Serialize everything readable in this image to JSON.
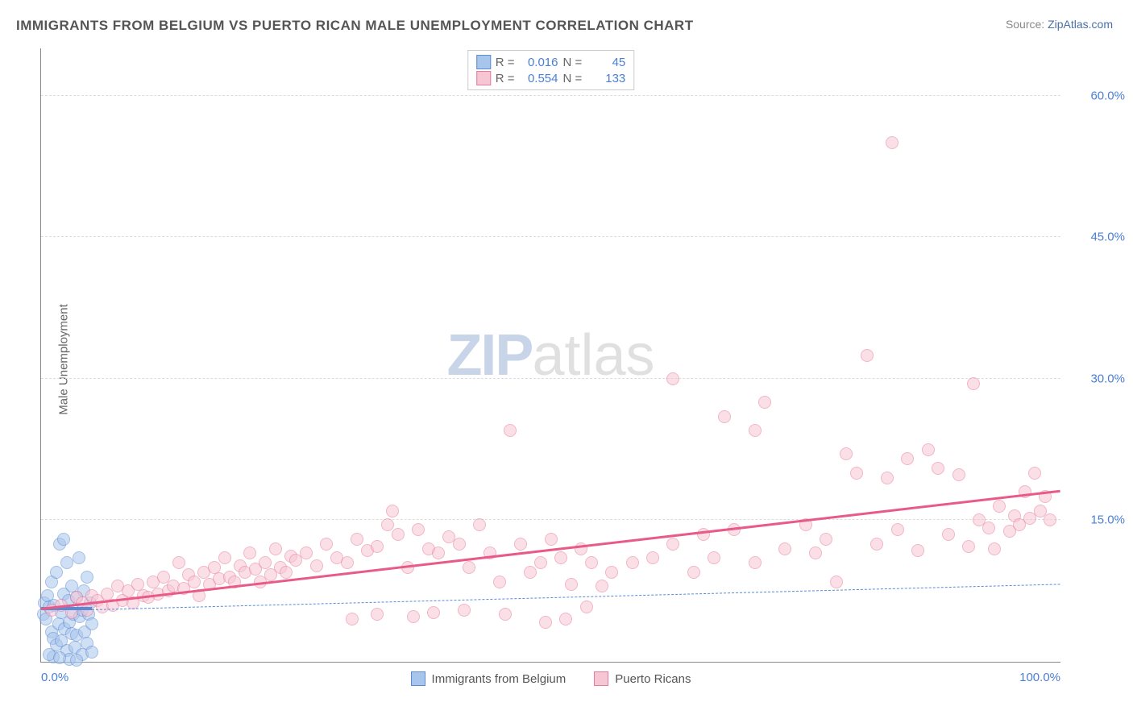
{
  "title": "IMMIGRANTS FROM BELGIUM VS PUERTO RICAN MALE UNEMPLOYMENT CORRELATION CHART",
  "source_label": "Source: ",
  "source_value": "ZipAtlas.com",
  "ylabel": "Male Unemployment",
  "watermark_a": "ZIP",
  "watermark_b": "atlas",
  "chart": {
    "type": "scatter",
    "background_color": "#ffffff",
    "grid_color": "#dddddd",
    "axis_color": "#888888",
    "xlim": [
      0,
      100
    ],
    "ylim": [
      0,
      65
    ],
    "xticks": [
      {
        "v": 0,
        "label": "0.0%"
      },
      {
        "v": 100,
        "label": "100.0%"
      }
    ],
    "yticks": [
      {
        "v": 15,
        "label": "15.0%"
      },
      {
        "v": 30,
        "label": "30.0%"
      },
      {
        "v": 45,
        "label": "45.0%"
      },
      {
        "v": 60,
        "label": "60.0%"
      }
    ],
    "tick_fontsize": 15,
    "tick_color": "#4a7fd4",
    "title_fontsize": 17,
    "title_color": "#555555",
    "ylabel_fontsize": 15,
    "ylabel_color": "#666666",
    "marker_radius": 8,
    "marker_stroke_width": 1,
    "series": [
      {
        "name": "Immigrants from Belgium",
        "fill": "#a8c5ec",
        "stroke": "#5b8bd4",
        "fill_opacity": 0.55,
        "R": "0.016",
        "N": "45",
        "trend": {
          "x1": 0,
          "y1": 5.5,
          "x2": 5,
          "y2": 5.5,
          "width": 4,
          "color": "#5b8bd4",
          "dash": false
        },
        "trend_ext": {
          "x1": 5,
          "y1": 5.5,
          "x2": 100,
          "y2": 8.2,
          "width": 1,
          "color": "#5b8bd4",
          "dash": true
        },
        "points": [
          [
            0.2,
            5
          ],
          [
            0.3,
            6.2
          ],
          [
            0.5,
            4.5
          ],
          [
            0.6,
            7
          ],
          [
            0.8,
            5.8
          ],
          [
            1,
            3.2
          ],
          [
            1,
            8.5
          ],
          [
            1.2,
            2.5
          ],
          [
            1.3,
            6
          ],
          [
            1.5,
            1.8
          ],
          [
            1.5,
            9.5
          ],
          [
            1.7,
            4
          ],
          [
            1.8,
            12.5
          ],
          [
            2,
            5.2
          ],
          [
            2,
            2.2
          ],
          [
            2.2,
            7.2
          ],
          [
            2.3,
            3.5
          ],
          [
            2.5,
            10.5
          ],
          [
            2.5,
            1.2
          ],
          [
            2.7,
            6.5
          ],
          [
            2.8,
            4.2
          ],
          [
            3,
            3
          ],
          [
            3,
            8
          ],
          [
            3.2,
            5
          ],
          [
            3.3,
            1.5
          ],
          [
            3.5,
            6.8
          ],
          [
            3.5,
            2.8
          ],
          [
            3.7,
            11
          ],
          [
            3.8,
            4.8
          ],
          [
            4,
            5.5
          ],
          [
            4,
            0.8
          ],
          [
            4.2,
            7.5
          ],
          [
            4.3,
            3.2
          ],
          [
            4.5,
            9
          ],
          [
            4.5,
            2
          ],
          [
            4.7,
            5
          ],
          [
            4.8,
            6.2
          ],
          [
            5,
            4
          ],
          [
            5,
            1
          ],
          [
            1.2,
            0.5
          ],
          [
            2.8,
            0.3
          ],
          [
            3.5,
            0.2
          ],
          [
            0.8,
            0.8
          ],
          [
            1.8,
            0.4
          ],
          [
            2.2,
            13
          ]
        ]
      },
      {
        "name": "Puerto Ricans",
        "fill": "#f7c6d4",
        "stroke": "#e87a9a",
        "fill_opacity": 0.55,
        "R": "0.554",
        "N": "133",
        "trend": {
          "x1": 0,
          "y1": 5.5,
          "x2": 100,
          "y2": 18,
          "width": 3,
          "color": "#e85a88",
          "dash": false
        },
        "points": [
          [
            1,
            5.5
          ],
          [
            2,
            6
          ],
          [
            3,
            5.2
          ],
          [
            3.5,
            6.8
          ],
          [
            4,
            6.2
          ],
          [
            4.5,
            5.5
          ],
          [
            5,
            7
          ],
          [
            5.5,
            6.5
          ],
          [
            6,
            5.8
          ],
          [
            6.5,
            7.2
          ],
          [
            7,
            6
          ],
          [
            7.5,
            8
          ],
          [
            8,
            6.5
          ],
          [
            8.5,
            7.5
          ],
          [
            9,
            6.2
          ],
          [
            9.5,
            8.2
          ],
          [
            10,
            7
          ],
          [
            10.5,
            6.8
          ],
          [
            11,
            8.5
          ],
          [
            11.5,
            7.2
          ],
          [
            12,
            9
          ],
          [
            12.5,
            7.5
          ],
          [
            13,
            8
          ],
          [
            13.5,
            10.5
          ],
          [
            14,
            7.8
          ],
          [
            14.5,
            9.2
          ],
          [
            15,
            8.5
          ],
          [
            15.5,
            7
          ],
          [
            16,
            9.5
          ],
          [
            16.5,
            8.2
          ],
          [
            17,
            10
          ],
          [
            17.5,
            8.8
          ],
          [
            18,
            11
          ],
          [
            18.5,
            9
          ],
          [
            19,
            8.5
          ],
          [
            19.5,
            10.2
          ],
          [
            20,
            9.5
          ],
          [
            20.5,
            11.5
          ],
          [
            21,
            9.8
          ],
          [
            21.5,
            8.5
          ],
          [
            22,
            10.5
          ],
          [
            22.5,
            9.2
          ],
          [
            23,
            12
          ],
          [
            23.5,
            10
          ],
          [
            24,
            9.5
          ],
          [
            24.5,
            11.2
          ],
          [
            25,
            10.8
          ],
          [
            26,
            11.5
          ],
          [
            27,
            10.2
          ],
          [
            28,
            12.5
          ],
          [
            29,
            11
          ],
          [
            30,
            10.5
          ],
          [
            30.5,
            4.5
          ],
          [
            31,
            13
          ],
          [
            32,
            11.8
          ],
          [
            33,
            12.2
          ],
          [
            33,
            5
          ],
          [
            34,
            14.5
          ],
          [
            34.5,
            16
          ],
          [
            35,
            13.5
          ],
          [
            36,
            10
          ],
          [
            36.5,
            4.8
          ],
          [
            37,
            14
          ],
          [
            38,
            12
          ],
          [
            38.5,
            5.2
          ],
          [
            39,
            11.5
          ],
          [
            40,
            13.2
          ],
          [
            41,
            12.5
          ],
          [
            41.5,
            5.5
          ],
          [
            42,
            10
          ],
          [
            43,
            14.5
          ],
          [
            44,
            11.5
          ],
          [
            45,
            8.5
          ],
          [
            45.5,
            5
          ],
          [
            46,
            24.5
          ],
          [
            47,
            12.5
          ],
          [
            48,
            9.5
          ],
          [
            49,
            10.5
          ],
          [
            49.5,
            4.2
          ],
          [
            50,
            13
          ],
          [
            51,
            11
          ],
          [
            51.5,
            4.5
          ],
          [
            52,
            8.2
          ],
          [
            53,
            12
          ],
          [
            53.5,
            5.8
          ],
          [
            54,
            10.5
          ],
          [
            55,
            8
          ],
          [
            56,
            9.5
          ],
          [
            58,
            10.5
          ],
          [
            60,
            11
          ],
          [
            62,
            12.5
          ],
          [
            62,
            30
          ],
          [
            64,
            9.5
          ],
          [
            65,
            13.5
          ],
          [
            66,
            11
          ],
          [
            67,
            26
          ],
          [
            68,
            14
          ],
          [
            70,
            24.5
          ],
          [
            70,
            10.5
          ],
          [
            71,
            27.5
          ],
          [
            73,
            12
          ],
          [
            75,
            14.5
          ],
          [
            76,
            11.5
          ],
          [
            77,
            13
          ],
          [
            78,
            8.5
          ],
          [
            79,
            22
          ],
          [
            80,
            20
          ],
          [
            81,
            32.5
          ],
          [
            82,
            12.5
          ],
          [
            83,
            19.5
          ],
          [
            83.5,
            55
          ],
          [
            84,
            14
          ],
          [
            85,
            21.5
          ],
          [
            86,
            11.8
          ],
          [
            87,
            22.5
          ],
          [
            88,
            20.5
          ],
          [
            89,
            13.5
          ],
          [
            90,
            19.8
          ],
          [
            91,
            12.2
          ],
          [
            91.5,
            29.5
          ],
          [
            92,
            15
          ],
          [
            93,
            14.2
          ],
          [
            93.5,
            12
          ],
          [
            94,
            16.5
          ],
          [
            95,
            13.8
          ],
          [
            95.5,
            15.5
          ],
          [
            96,
            14.5
          ],
          [
            96.5,
            18
          ],
          [
            97,
            15.2
          ],
          [
            97.5,
            20
          ],
          [
            98,
            16
          ],
          [
            98.5,
            17.5
          ],
          [
            99,
            15
          ]
        ]
      }
    ]
  },
  "legend_top": {
    "r_label": "R =",
    "n_label": "N ="
  },
  "legend_bottom": [
    {
      "swatch_fill": "#a8c5ec",
      "swatch_stroke": "#5b8bd4",
      "label": "Immigrants from Belgium"
    },
    {
      "swatch_fill": "#f7c6d4",
      "swatch_stroke": "#e87a9a",
      "label": "Puerto Ricans"
    }
  ]
}
